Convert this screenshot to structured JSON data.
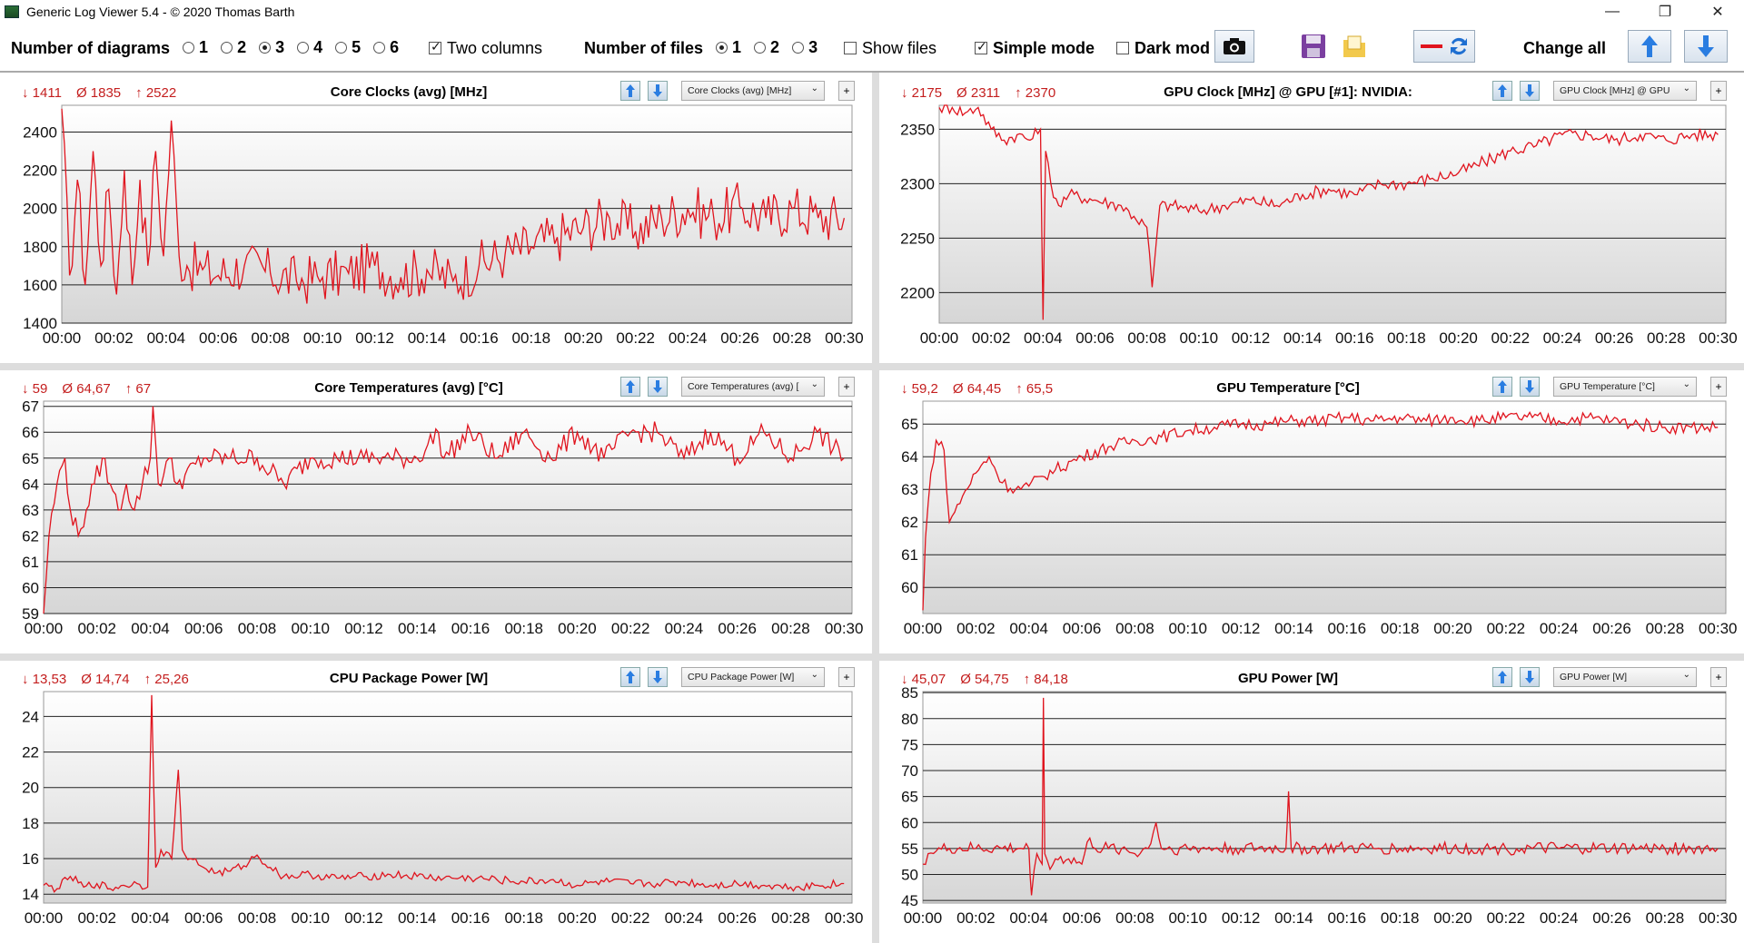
{
  "window": {
    "title": "Generic Log Viewer 5.4 - © 2020 Thomas Barth",
    "minimize": "—",
    "restore": "❐",
    "close": "✕"
  },
  "toolbar": {
    "num_diagrams_label": "Number of diagrams",
    "diagram_options": [
      "1",
      "2",
      "3",
      "4",
      "5",
      "6"
    ],
    "diagram_selected": "3",
    "two_columns_label": "Two columns",
    "two_columns_checked": true,
    "num_files_label": "Number of files",
    "file_options": [
      "1",
      "2",
      "3"
    ],
    "file_selected": "1",
    "show_files_label": "Show files",
    "show_files_checked": false,
    "simple_mode_label": "Simple mode",
    "simple_mode_checked": true,
    "dark_mode_label": "Dark mod",
    "dark_mode_checked": false,
    "change_all_label": "Change all",
    "icons": [
      "camera-icon",
      "save-icon",
      "folder-icon",
      "line-style-swap-icon",
      "arrow-up-icon",
      "arrow-down-icon"
    ]
  },
  "line_color": "#e0141e",
  "time_ticks": [
    "00:00",
    "00:02",
    "00:04",
    "00:06",
    "00:08",
    "00:10",
    "00:12",
    "00:14",
    "00:16",
    "00:18",
    "00:20",
    "00:22",
    "00:24",
    "00:26",
    "00:28",
    "00:30"
  ],
  "panels": [
    {
      "id": "core-clocks",
      "stats": {
        "min": "↓ 1411",
        "avg": "Ø 1835",
        "max": "↑ 2522"
      },
      "title": "Core Clocks (avg) [MHz]",
      "dropdown": "Core Clocks (avg) [MHz]",
      "chart_data": {
        "type": "line",
        "ylim": [
          1400,
          2540
        ],
        "yticks": [
          1400,
          1600,
          1800,
          2000,
          2200,
          2400
        ],
        "x_minutes": [
          0,
          0.3,
          0.6,
          0.9,
          1.2,
          1.5,
          1.8,
          2.1,
          2.4,
          2.7,
          3.0,
          3.3,
          3.6,
          3.9,
          4.2,
          4.5,
          4.8,
          5.4,
          6,
          7,
          8,
          9,
          10,
          11,
          12,
          13,
          14,
          15,
          16,
          17,
          18,
          19,
          20,
          21,
          22,
          23,
          24,
          25,
          26,
          27,
          28,
          29,
          30
        ],
        "y": [
          2522,
          1650,
          2150,
          1600,
          2300,
          1700,
          2100,
          1550,
          2200,
          1600,
          2150,
          1700,
          2300,
          1750,
          2460,
          1750,
          1700,
          1680,
          1650,
          1700,
          1660,
          1620,
          1640,
          1660,
          1700,
          1640,
          1680,
          1620,
          1700,
          1760,
          1800,
          1850,
          1900,
          1950,
          1880,
          1950,
          2000,
          1950,
          2010,
          1950,
          2000,
          1950,
          1950
        ]
      }
    },
    {
      "id": "gpu-clock",
      "stats": {
        "min": "↓ 2175",
        "avg": "Ø 2311",
        "max": "↑ 2370"
      },
      "title": "GPU Clock [MHz] @ GPU [#1]: NVIDIA:",
      "dropdown": "GPU Clock [MHz] @ GPU",
      "chart_data": {
        "type": "line",
        "ylim": [
          2172,
          2372
        ],
        "yticks": [
          2200,
          2250,
          2300,
          2350
        ],
        "x_minutes": [
          0,
          0.5,
          1,
          1.5,
          2,
          2.5,
          3,
          3.5,
          3.9,
          4.0,
          4.1,
          4.3,
          4.6,
          5,
          6,
          7,
          7.5,
          8,
          8.2,
          8.5,
          9,
          10,
          11,
          12,
          13,
          14,
          15,
          16,
          17,
          18,
          19,
          20,
          21,
          22,
          23,
          24,
          25,
          26,
          27,
          28,
          29,
          30
        ],
        "y": [
          2370,
          2370,
          2365,
          2370,
          2350,
          2340,
          2345,
          2340,
          2350,
          2175,
          2330,
          2300,
          2280,
          2290,
          2285,
          2280,
          2270,
          2260,
          2205,
          2280,
          2280,
          2275,
          2280,
          2285,
          2280,
          2290,
          2295,
          2290,
          2300,
          2300,
          2305,
          2310,
          2320,
          2330,
          2335,
          2345,
          2345,
          2340,
          2345,
          2340,
          2345,
          2345
        ]
      }
    },
    {
      "id": "core-temp",
      "stats": {
        "min": "↓ 59",
        "avg": "Ø 64,67",
        "max": "↑ 67"
      },
      "title": "Core Temperatures (avg) [°C]",
      "dropdown": "Core Temperatures (avg) [",
      "chart_data": {
        "type": "line",
        "ylim": [
          59,
          67.2
        ],
        "yticks": [
          59,
          60,
          61,
          62,
          63,
          64,
          65,
          66,
          67
        ],
        "x_minutes": [
          0,
          0.2,
          0.5,
          0.8,
          1.0,
          1.3,
          1.6,
          1.9,
          2.2,
          2.5,
          2.8,
          3.1,
          3.4,
          3.7,
          4.0,
          4.1,
          4.3,
          4.7,
          5,
          6,
          7,
          8,
          9,
          10,
          11,
          12,
          13,
          14,
          14.8,
          15,
          16,
          17,
          18,
          19,
          20,
          21,
          22,
          23,
          24,
          25,
          26,
          27,
          28,
          29,
          30
        ],
        "y": [
          59,
          62,
          64,
          65,
          63,
          62,
          63,
          64,
          65,
          64,
          63,
          64,
          63,
          64,
          65,
          67,
          64,
          65,
          64,
          65,
          65,
          65,
          64,
          65,
          65,
          65,
          65,
          65,
          66,
          65,
          66,
          65,
          66,
          65,
          66,
          65,
          66,
          66,
          65,
          66,
          65,
          66,
          65,
          66,
          65
        ]
      }
    },
    {
      "id": "gpu-temp",
      "stats": {
        "min": "↓ 59,2",
        "avg": "Ø 64,45",
        "max": "↑ 65,5"
      },
      "title": "GPU Temperature [°C]",
      "dropdown": "GPU Temperature [°C]",
      "chart_data": {
        "type": "line",
        "ylim": [
          59.2,
          65.7
        ],
        "yticks": [
          60,
          61,
          62,
          63,
          64,
          65
        ],
        "x_minutes": [
          0,
          0.1,
          0.3,
          0.5,
          0.8,
          1.0,
          1.2,
          1.5,
          2,
          2.5,
          3,
          3.5,
          4,
          4.5,
          5,
          6,
          7,
          8,
          9,
          10,
          11,
          12,
          13,
          14,
          15,
          16,
          17,
          18,
          19,
          20,
          21,
          22,
          23,
          24,
          25,
          26,
          27,
          28,
          29,
          30
        ],
        "y": [
          59.3,
          61.5,
          63.5,
          64.5,
          64.2,
          62.0,
          62.3,
          62.8,
          63.5,
          64.0,
          63.2,
          63.0,
          63.1,
          63.4,
          63.6,
          64.0,
          64.3,
          64.5,
          64.6,
          64.8,
          64.9,
          65.0,
          65.0,
          65.1,
          65.1,
          65.2,
          65.1,
          65.2,
          65.1,
          65.2,
          65.1,
          65.2,
          65.2,
          65.1,
          65.2,
          65.1,
          65.0,
          64.9,
          64.9,
          64.9
        ]
      }
    },
    {
      "id": "cpu-power",
      "stats": {
        "min": "↓ 13,53",
        "avg": "Ø 14,74",
        "max": "↑ 25,26"
      },
      "title": "CPU Package Power [W]",
      "dropdown": "CPU Package Power [W]",
      "chart_data": {
        "type": "line",
        "ylim": [
          13.5,
          25.4
        ],
        "yticks": [
          14,
          16,
          18,
          20,
          22,
          24
        ],
        "x_minutes": [
          0,
          0.5,
          1,
          1.5,
          2,
          2.5,
          3,
          3.5,
          3.9,
          4.05,
          4.2,
          4.4,
          4.8,
          5.05,
          5.2,
          5.5,
          6,
          6.5,
          7,
          7.5,
          8,
          8.5,
          9,
          10,
          11,
          12,
          13,
          14,
          15,
          16,
          17,
          18,
          19,
          20,
          21,
          22,
          23,
          24,
          25,
          26,
          27,
          28,
          29,
          30
        ],
        "y": [
          14.5,
          14.3,
          15.0,
          14.4,
          14.6,
          14.3,
          14.5,
          14.6,
          14.4,
          25.2,
          15.5,
          16.5,
          16.0,
          21.0,
          16.5,
          16.0,
          15.5,
          15.2,
          15.3,
          15.6,
          16.2,
          15.5,
          15.0,
          15.1,
          14.9,
          15.0,
          15.1,
          15.0,
          14.9,
          14.9,
          14.8,
          14.7,
          14.8,
          14.5,
          14.7,
          14.6,
          14.6,
          14.7,
          14.5,
          14.6,
          14.5,
          14.4,
          14.5,
          14.6
        ]
      }
    },
    {
      "id": "gpu-power",
      "stats": {
        "min": "↓ 45,07",
        "avg": "Ø 54,75",
        "max": "↑ 84,18"
      },
      "title": "GPU Power [W]",
      "dropdown": "GPU Power [W]",
      "chart_data": {
        "type": "line",
        "ylim": [
          44.5,
          85.2
        ],
        "yticks": [
          45,
          50,
          55,
          60,
          65,
          70,
          75,
          80,
          85
        ],
        "x_minutes": [
          0,
          0.2,
          0.5,
          1,
          2,
          3,
          4,
          4.1,
          4.3,
          4.5,
          4.55,
          4.6,
          4.8,
          5,
          5.5,
          6,
          6.3,
          6.5,
          7,
          7.5,
          8,
          8.5,
          8.8,
          9,
          10,
          11,
          12,
          13,
          13.7,
          13.8,
          13.9,
          14,
          15,
          16,
          17,
          18,
          19,
          20,
          21,
          22,
          23,
          24,
          25,
          26,
          27,
          28,
          29,
          30
        ],
        "y": [
          52,
          54,
          54.5,
          55,
          55,
          55,
          55,
          46,
          54,
          52,
          84,
          54,
          51,
          53,
          53,
          52,
          57,
          55,
          55,
          55,
          54,
          55,
          60,
          55,
          55,
          55,
          55,
          55,
          55,
          66,
          55,
          55,
          55,
          55,
          55,
          55,
          55,
          55,
          55,
          55,
          55,
          55,
          55,
          55,
          55,
          55,
          55,
          55
        ]
      }
    }
  ]
}
